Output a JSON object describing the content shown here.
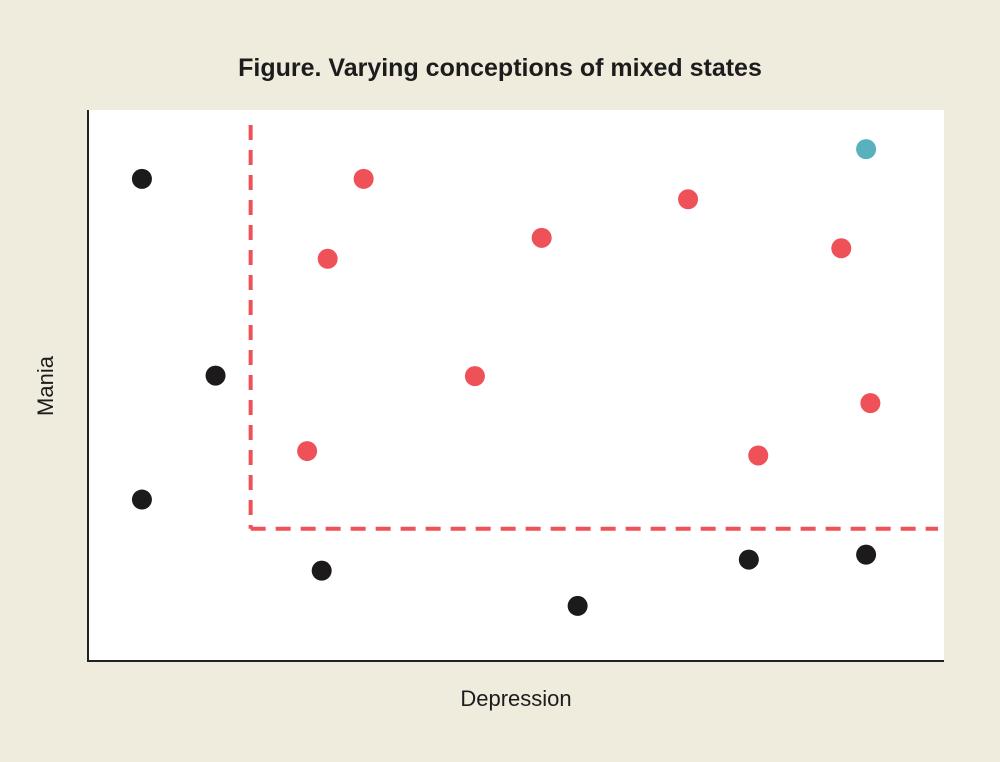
{
  "chart_data": {
    "type": "scatter",
    "title": "Figure. Varying conceptions of mixed states",
    "xlabel": "Depression",
    "ylabel": "Mania",
    "xlim": [
      0,
      100
    ],
    "ylim": [
      0,
      100
    ],
    "grid": false,
    "threshold": {
      "x": 19,
      "y": 24
    },
    "colors": {
      "black": "#1c1a1a",
      "red": "#ee5157",
      "teal": "#58b1bc",
      "threshold_line": "#ee5157"
    },
    "series": [
      {
        "color": "black",
        "points": [
          [
            6.3,
            87.5
          ],
          [
            14.9,
            51.8
          ],
          [
            6.3,
            29.3
          ],
          [
            27.3,
            16.4
          ],
          [
            57.2,
            10.0
          ],
          [
            77.2,
            18.4
          ],
          [
            90.9,
            19.3
          ]
        ]
      },
      {
        "color": "red",
        "points": [
          [
            32.2,
            87.5
          ],
          [
            28.0,
            73.0
          ],
          [
            53.0,
            76.8
          ],
          [
            70.1,
            83.8
          ],
          [
            88.0,
            74.9
          ],
          [
            45.2,
            51.7
          ],
          [
            25.6,
            38.1
          ],
          [
            78.3,
            37.3
          ],
          [
            91.4,
            46.8
          ]
        ]
      },
      {
        "color": "teal",
        "points": [
          [
            90.9,
            92.9
          ]
        ]
      }
    ]
  }
}
